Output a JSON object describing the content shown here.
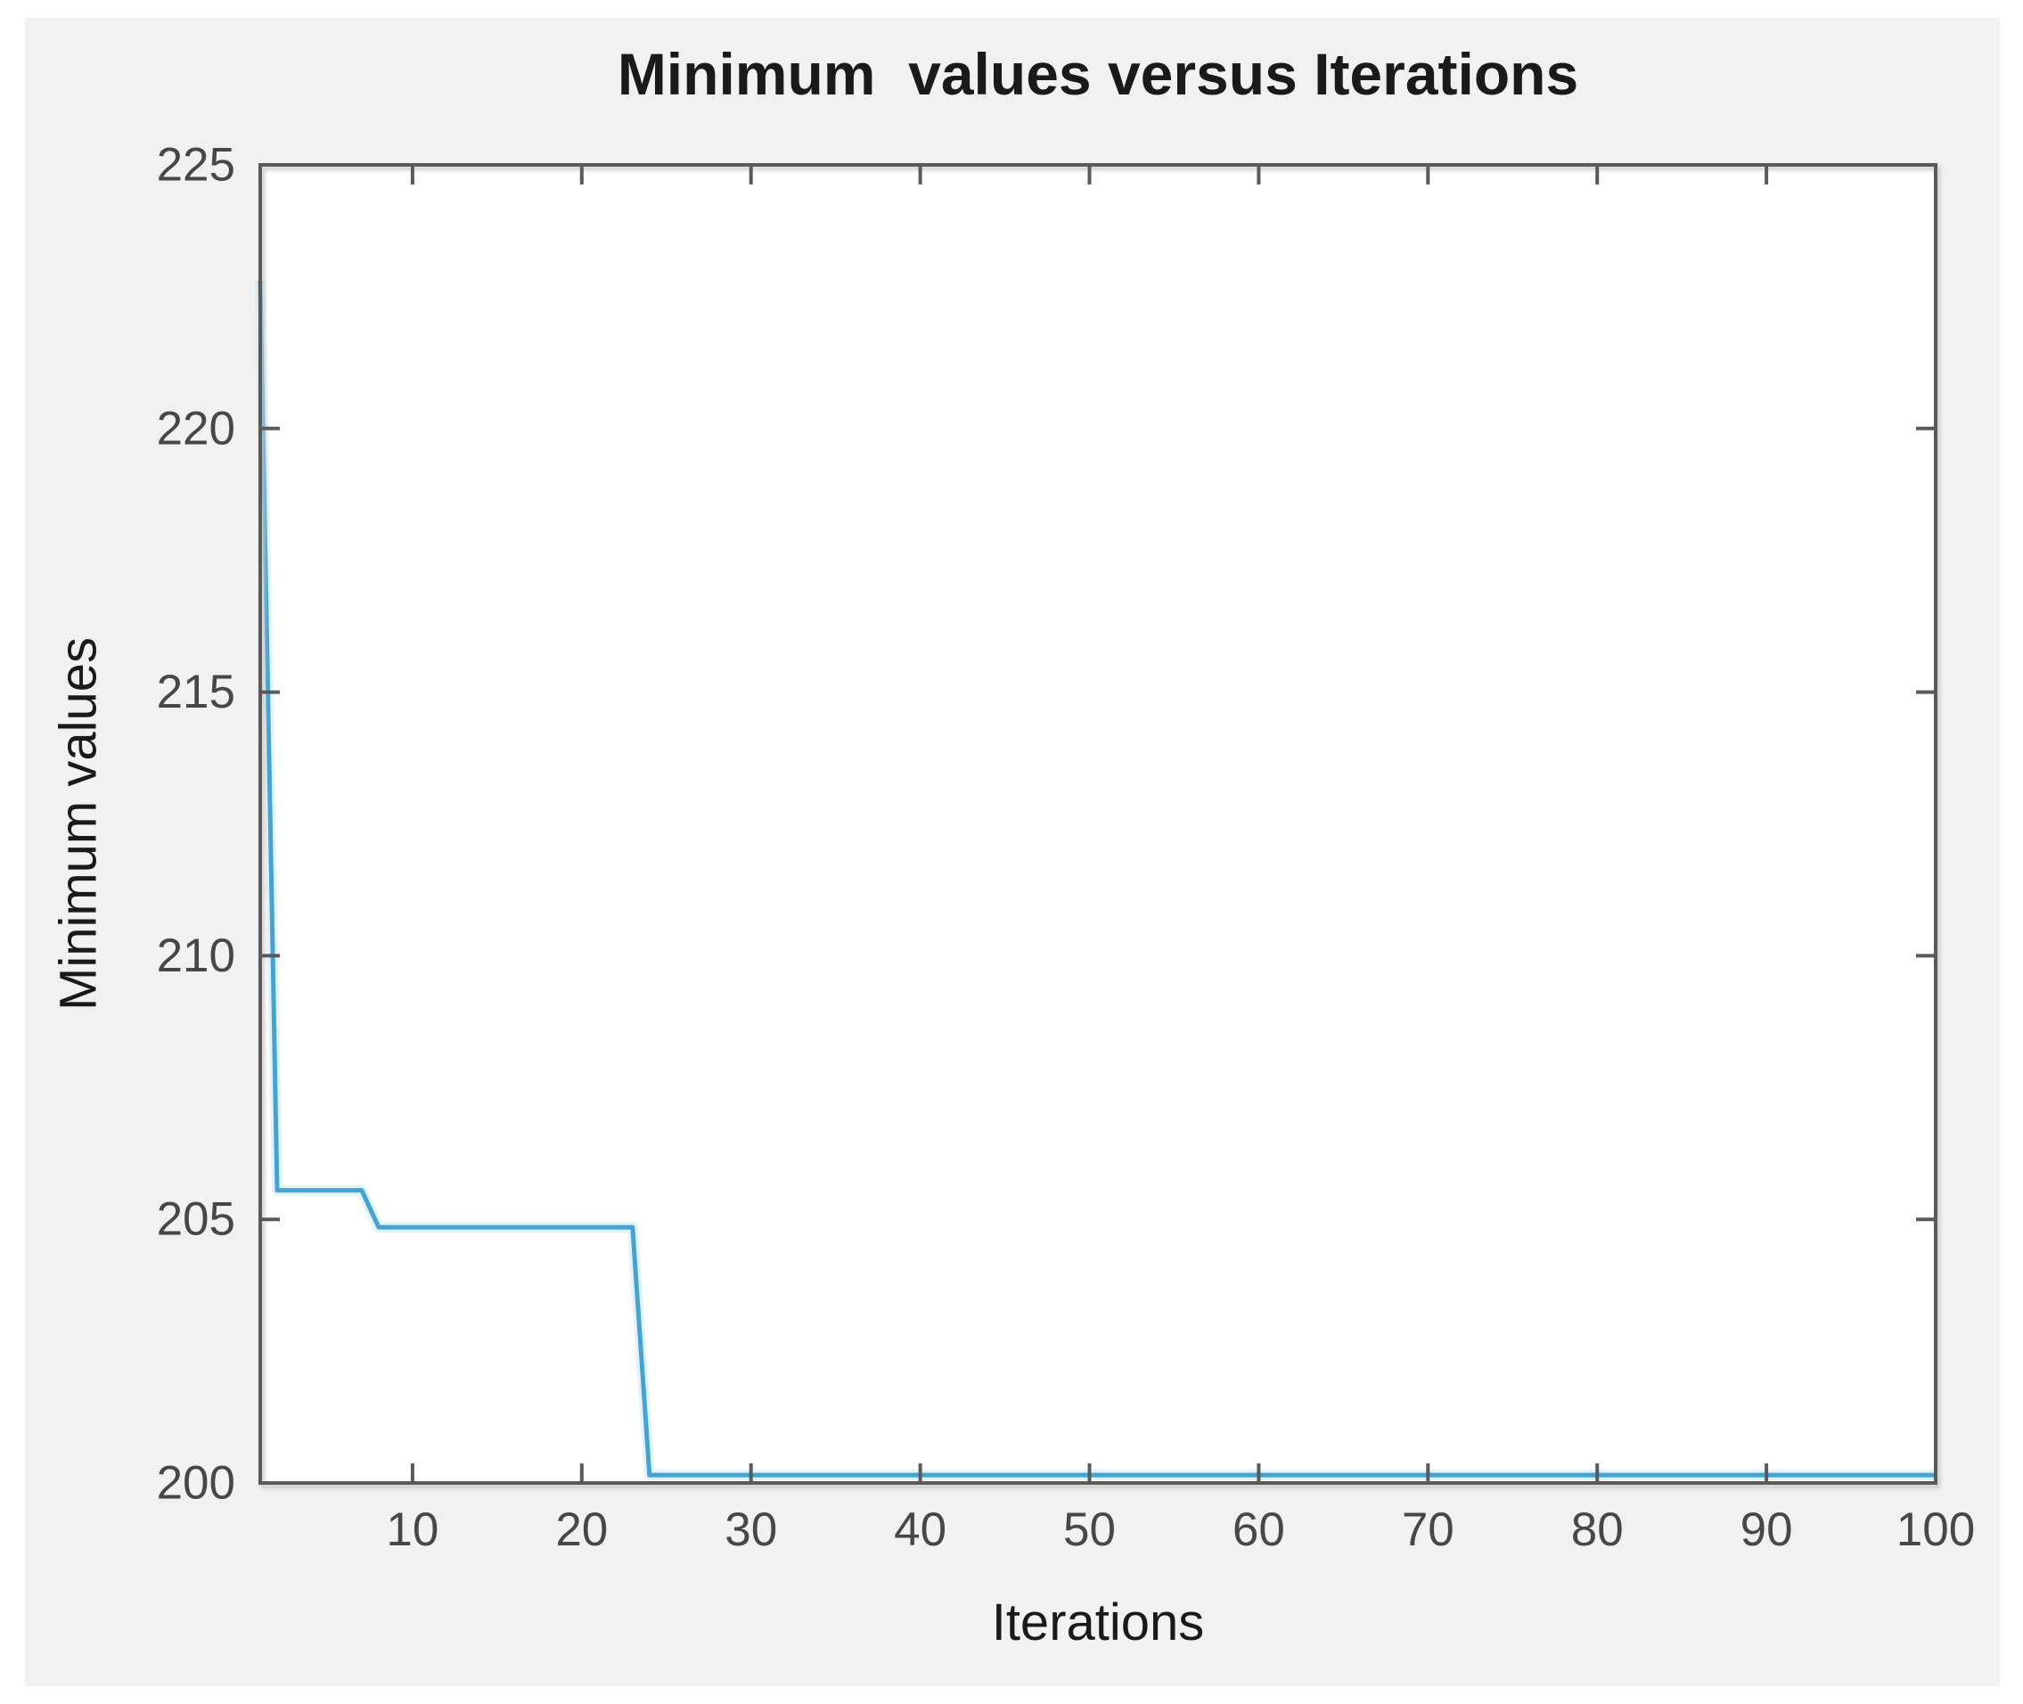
{
  "window": {
    "background": "#ffffff"
  },
  "figure": {
    "background": "#f1f1f1"
  },
  "chart_data": {
    "type": "line",
    "title": "Minimum  values versus Iterations",
    "xlabel": "Iterations",
    "ylabel": "Minimum values",
    "xlim": [
      1,
      100
    ],
    "ylim": [
      200,
      225
    ],
    "xticks": [
      10,
      20,
      30,
      40,
      50,
      60,
      70,
      80,
      90,
      100
    ],
    "yticks": [
      200,
      205,
      210,
      215,
      220,
      225
    ],
    "grid": false,
    "box": true,
    "legend": null,
    "tick_direction": "in",
    "plot_background": "#ffffff",
    "axis_color": "#5a5a5a",
    "tick_label_color": "#474747",
    "label_color": "#1a1a1a",
    "series": [
      {
        "name": "Minimum values",
        "color": "#45a2d2",
        "halo_color": "#c9e9f6",
        "x": [
          1,
          2,
          7,
          8,
          23,
          24,
          100
        ],
        "y": [
          222.8,
          205.55,
          205.55,
          204.85,
          204.85,
          200.15,
          200.15
        ]
      }
    ]
  }
}
